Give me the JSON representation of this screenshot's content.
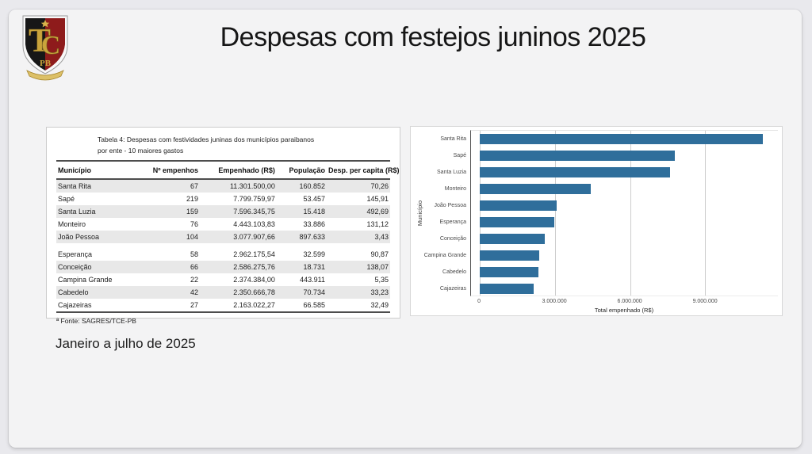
{
  "slide": {
    "title": "Despesas com festejos juninos 2025",
    "period": "Janeiro a julho de 2025",
    "logo": {
      "icon": "tce-pb-crest-icon",
      "monogram_t": "T",
      "monogram_c": "C",
      "sub": "PB"
    }
  },
  "table": {
    "caption_lines": [
      "Tabela 4: Despesas com festividades juninas dos municípios paraibanos",
      "por ente - 10 maiores gastos"
    ],
    "columns": [
      "Município",
      "Nº empenhos",
      "Empenhado (R$)",
      "População",
      "Desp. per capita (R$)"
    ],
    "row_groups": [
      [
        [
          "Santa Rita",
          "67",
          "11.301.500,00",
          "160.852",
          "70,26"
        ],
        [
          "Sapé",
          "219",
          "7.799.759,97",
          "53.457",
          "145,91"
        ],
        [
          "Santa Luzia",
          "159",
          "7.596.345,75",
          "15.418",
          "492,69"
        ],
        [
          "Monteiro",
          "76",
          "4.443.103,83",
          "33.886",
          "131,12"
        ],
        [
          "João Pessoa",
          "104",
          "3.077.907,66",
          "897.633",
          "3,43"
        ]
      ],
      [
        [
          "Esperança",
          "58",
          "2.962.175,54",
          "32.599",
          "90,87"
        ],
        [
          "Conceição",
          "66",
          "2.586.275,76",
          "18.731",
          "138,07"
        ],
        [
          "Campina Grande",
          "22",
          "2.374.384,00",
          "443.911",
          "5,35"
        ],
        [
          "Cabedelo",
          "42",
          "2.350.666,78",
          "70.734",
          "33,23"
        ],
        [
          "Cajazeiras",
          "27",
          "2.163.022,27",
          "66.585",
          "32,49"
        ]
      ]
    ],
    "footnote": "ª Fonte: SAGRES/TCE-PB"
  },
  "chart_data": {
    "type": "bar",
    "orientation": "horizontal",
    "title": "",
    "categories": [
      "Santa Rita",
      "Sapé",
      "Santa Luzia",
      "Monteiro",
      "João Pessoa",
      "Esperança",
      "Conceição",
      "Campina Grande",
      "Cabedelo",
      "Cajazeiras"
    ],
    "values": [
      11301500,
      7799760,
      7596346,
      4443104,
      3077908,
      2962176,
      2586276,
      2374384,
      2350667,
      2163022
    ],
    "xlabel": "Total empenhado (R$)",
    "ylabel": "Município",
    "xlim": [
      -350000,
      11900000
    ],
    "xticks": [
      0,
      3000000,
      6000000,
      9000000
    ],
    "xtick_labels": [
      "0",
      "3.000.000",
      "6.000.000",
      "9.000.000"
    ],
    "grid": true,
    "legend": false,
    "bar_color": "#2f6e9b"
  }
}
